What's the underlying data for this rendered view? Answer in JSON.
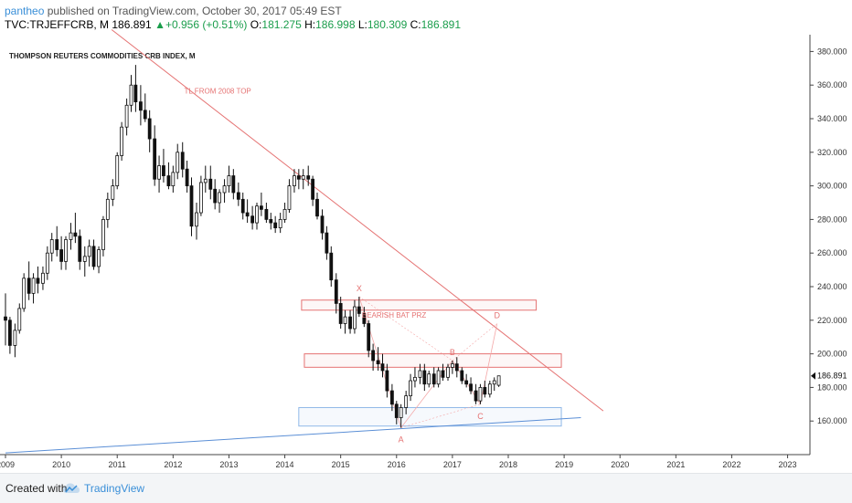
{
  "header": {
    "username": "pantheo",
    "published_text": "published on TradingView.com, October 30, 2017 05:49 EST"
  },
  "ticker_line": {
    "symbol": "TVC:TRJEFFCRB, M",
    "last": "186.891",
    "change": "+0.956 (+0.51%)",
    "open_label": "O:",
    "open": "181.275",
    "high_label": "H:",
    "high": "186.998",
    "low_label": "L:",
    "low": "180.309",
    "close_label": "C:",
    "close": "186.891"
  },
  "footer": {
    "created_with": "Created with",
    "brand": "TradingView"
  },
  "colors": {
    "bull": "#ffffff",
    "bear": "#111111",
    "trendline": "#e57373",
    "support": "#5b8fd6",
    "zone_red": "#e57373",
    "zone_blue": "#90b8e8",
    "pattern": "#f4a7a7",
    "price_tag": "#111111"
  },
  "chart_data": {
    "type": "candlestick",
    "title": "THOMPSON REUTERS COMMODITIES CRB INDEX, M",
    "x_tick_labels": [
      "2009",
      "2010",
      "2011",
      "2012",
      "2013",
      "2014",
      "2015",
      "2016",
      "2017",
      "2018",
      "2019",
      "2020",
      "2021",
      "2022",
      "2023"
    ],
    "y_tick_labels": [
      "160.000",
      "180.000",
      "200.000",
      "220.000",
      "240.000",
      "260.000",
      "280.000",
      "300.000",
      "320.000",
      "340.000",
      "360.000",
      "380.000"
    ],
    "ylim": [
      140,
      390
    ],
    "xlim": [
      2009.0,
      2023.4
    ],
    "last_price_label": "186.891",
    "candles": [
      [
        2009.0,
        222,
        236,
        205,
        220
      ],
      [
        2009.08,
        220,
        222,
        200,
        205
      ],
      [
        2009.17,
        205,
        218,
        198,
        214
      ],
      [
        2009.25,
        214,
        230,
        212,
        227
      ],
      [
        2009.33,
        227,
        248,
        225,
        245
      ],
      [
        2009.42,
        245,
        255,
        232,
        236
      ],
      [
        2009.5,
        236,
        248,
        230,
        245
      ],
      [
        2009.58,
        245,
        252,
        236,
        242
      ],
      [
        2009.67,
        242,
        252,
        238,
        248
      ],
      [
        2009.75,
        248,
        264,
        244,
        260
      ],
      [
        2009.83,
        260,
        272,
        255,
        268
      ],
      [
        2009.92,
        268,
        276,
        258,
        262
      ],
      [
        2010.0,
        262,
        270,
        250,
        255
      ],
      [
        2010.08,
        255,
        270,
        250,
        268
      ],
      [
        2010.17,
        268,
        278,
        262,
        272
      ],
      [
        2010.25,
        272,
        284,
        266,
        270
      ],
      [
        2010.33,
        270,
        274,
        250,
        255
      ],
      [
        2010.42,
        255,
        264,
        246,
        258
      ],
      [
        2010.5,
        258,
        268,
        252,
        264
      ],
      [
        2010.58,
        264,
        268,
        250,
        252
      ],
      [
        2010.67,
        252,
        264,
        248,
        262
      ],
      [
        2010.75,
        262,
        282,
        258,
        280
      ],
      [
        2010.83,
        280,
        296,
        275,
        292
      ],
      [
        2010.92,
        292,
        304,
        288,
        300
      ],
      [
        2011.0,
        300,
        320,
        298,
        318
      ],
      [
        2011.08,
        318,
        338,
        315,
        335
      ],
      [
        2011.17,
        335,
        352,
        330,
        348
      ],
      [
        2011.25,
        348,
        366,
        344,
        360
      ],
      [
        2011.33,
        360,
        372,
        344,
        350
      ],
      [
        2011.42,
        350,
        360,
        336,
        345
      ],
      [
        2011.5,
        345,
        355,
        338,
        340
      ],
      [
        2011.58,
        340,
        345,
        320,
        328
      ],
      [
        2011.67,
        328,
        336,
        300,
        304
      ],
      [
        2011.75,
        304,
        318,
        296,
        312
      ],
      [
        2011.83,
        312,
        322,
        302,
        306
      ],
      [
        2011.92,
        306,
        314,
        298,
        300
      ],
      [
        2012.0,
        300,
        312,
        296,
        308
      ],
      [
        2012.08,
        308,
        325,
        304,
        320
      ],
      [
        2012.17,
        320,
        326,
        305,
        310
      ],
      [
        2012.25,
        310,
        315,
        296,
        300
      ],
      [
        2012.33,
        300,
        305,
        270,
        276
      ],
      [
        2012.42,
        276,
        290,
        268,
        284
      ],
      [
        2012.5,
        284,
        306,
        282,
        302
      ],
      [
        2012.58,
        302,
        312,
        296,
        304
      ],
      [
        2012.67,
        304,
        312,
        292,
        298
      ],
      [
        2012.75,
        298,
        304,
        286,
        290
      ],
      [
        2012.83,
        290,
        298,
        284,
        296
      ],
      [
        2012.92,
        296,
        304,
        290,
        300
      ],
      [
        2013.0,
        300,
        312,
        296,
        306
      ],
      [
        2013.08,
        306,
        310,
        292,
        296
      ],
      [
        2013.17,
        296,
        302,
        288,
        292
      ],
      [
        2013.25,
        292,
        296,
        280,
        284
      ],
      [
        2013.33,
        284,
        292,
        278,
        282
      ],
      [
        2013.42,
        282,
        288,
        274,
        278
      ],
      [
        2013.5,
        278,
        290,
        274,
        288
      ],
      [
        2013.58,
        288,
        296,
        282,
        286
      ],
      [
        2013.67,
        286,
        290,
        278,
        280
      ],
      [
        2013.75,
        280,
        284,
        274,
        278
      ],
      [
        2013.83,
        278,
        282,
        272,
        275
      ],
      [
        2013.92,
        275,
        284,
        272,
        280
      ],
      [
        2014.0,
        280,
        290,
        278,
        286
      ],
      [
        2014.08,
        286,
        304,
        284,
        300
      ],
      [
        2014.17,
        300,
        310,
        296,
        306
      ],
      [
        2014.25,
        306,
        310,
        298,
        304
      ],
      [
        2014.33,
        304,
        310,
        298,
        306
      ],
      [
        2014.42,
        306,
        312,
        300,
        304
      ],
      [
        2014.5,
        304,
        306,
        288,
        292
      ],
      [
        2014.58,
        292,
        296,
        280,
        282
      ],
      [
        2014.67,
        282,
        286,
        268,
        272
      ],
      [
        2014.75,
        272,
        276,
        256,
        260
      ],
      [
        2014.83,
        260,
        264,
        240,
        244
      ],
      [
        2014.92,
        244,
        248,
        224,
        230
      ],
      [
        2015.0,
        230,
        234,
        215,
        218
      ],
      [
        2015.08,
        218,
        226,
        212,
        222
      ],
      [
        2015.17,
        222,
        226,
        212,
        215
      ],
      [
        2015.25,
        215,
        232,
        212,
        228
      ],
      [
        2015.33,
        228,
        234,
        222,
        224
      ],
      [
        2015.42,
        224,
        228,
        216,
        218
      ],
      [
        2015.5,
        218,
        220,
        198,
        202
      ],
      [
        2015.58,
        202,
        206,
        190,
        196
      ],
      [
        2015.67,
        196,
        204,
        190,
        194
      ],
      [
        2015.75,
        194,
        200,
        186,
        190
      ],
      [
        2015.83,
        190,
        194,
        174,
        178
      ],
      [
        2015.92,
        178,
        182,
        166,
        170
      ],
      [
        2016.0,
        170,
        172,
        158,
        162
      ],
      [
        2016.08,
        162,
        170,
        156,
        168
      ],
      [
        2016.17,
        168,
        178,
        164,
        175
      ],
      [
        2016.25,
        175,
        188,
        172,
        184
      ],
      [
        2016.33,
        184,
        192,
        180,
        186
      ],
      [
        2016.42,
        186,
        194,
        182,
        190
      ],
      [
        2016.5,
        190,
        194,
        178,
        182
      ],
      [
        2016.58,
        182,
        190,
        180,
        188
      ],
      [
        2016.67,
        188,
        192,
        180,
        182
      ],
      [
        2016.75,
        182,
        192,
        180,
        190
      ],
      [
        2016.83,
        190,
        194,
        184,
        186
      ],
      [
        2016.92,
        186,
        194,
        184,
        192
      ],
      [
        2017.0,
        192,
        196,
        188,
        194
      ],
      [
        2017.08,
        194,
        198,
        186,
        190
      ],
      [
        2017.17,
        190,
        192,
        182,
        184
      ],
      [
        2017.25,
        184,
        188,
        180,
        182
      ],
      [
        2017.33,
        182,
        186,
        176,
        178
      ],
      [
        2017.42,
        178,
        182,
        170,
        172
      ],
      [
        2017.5,
        172,
        182,
        170,
        180
      ],
      [
        2017.58,
        180,
        184,
        174,
        176
      ],
      [
        2017.67,
        176,
        184,
        174,
        182
      ],
      [
        2017.75,
        182,
        186,
        178,
        184
      ],
      [
        2017.83,
        181.275,
        186.998,
        180.309,
        186.891
      ]
    ],
    "annotations": {
      "trendline_label": "TL FROM 2008 TOP",
      "prz_label": "BEARISH BAT PRZ",
      "points": [
        {
          "label": "X",
          "x": 2015.33,
          "y": 234
        },
        {
          "label": "A",
          "x": 2016.08,
          "y": 156
        },
        {
          "label": "B",
          "x": 2017.0,
          "y": 196
        },
        {
          "label": "C",
          "x": 2017.5,
          "y": 170
        },
        {
          "label": "D",
          "x": 2017.8,
          "y": 218
        }
      ],
      "resistance_line": {
        "from": [
          2010.9,
          393
        ],
        "to": [
          2019.7,
          166
        ]
      },
      "support_line": {
        "from": [
          2009.0,
          141
        ],
        "to": [
          2019.3,
          162
        ]
      },
      "zones": [
        {
          "x0": 2014.3,
          "x1": 2018.5,
          "y0": 232,
          "y1": 226,
          "label": "prz"
        },
        {
          "x0": 2014.35,
          "x1": 2018.95,
          "y0": 200,
          "y1": 192
        },
        {
          "x0": 2014.25,
          "x1": 2018.95,
          "y0": 168,
          "y1": 157
        }
      ]
    }
  }
}
